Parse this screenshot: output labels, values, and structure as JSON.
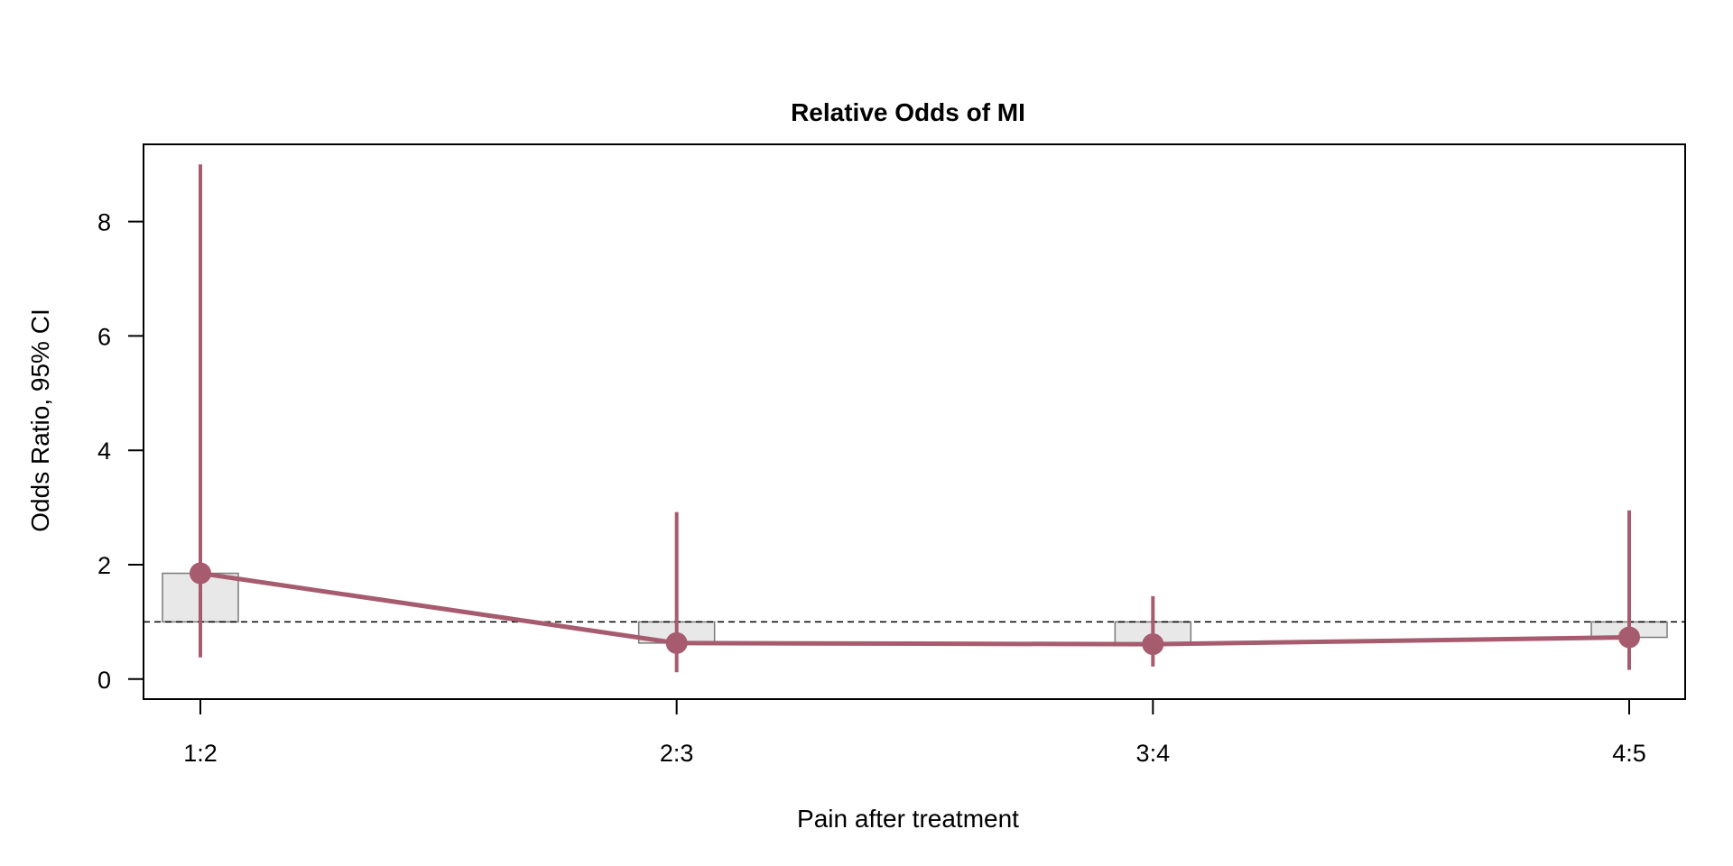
{
  "chart_data": {
    "type": "line",
    "title": "Relative Odds of MI",
    "xlabel": "Pain after treatment",
    "ylabel": "Odds Ratio, 95% CI",
    "categories": [
      "1:2",
      "2:3",
      "3:4",
      "4:5"
    ],
    "y_ticks": [
      "0",
      "2",
      "4",
      "6",
      "8"
    ],
    "ylim": [
      -0.35,
      9.35
    ],
    "reference_line": 1,
    "series": [
      {
        "values": [
          1.85,
          0.63,
          0.61,
          0.73
        ],
        "ci_lower": [
          0.38,
          0.12,
          0.22,
          0.16
        ],
        "ci_upper": [
          9.0,
          2.92,
          1.45,
          2.95
        ],
        "color": "#a65c6e"
      }
    ],
    "bar_color": "#e8e8e8",
    "bar_border_color": "#7a7a7a",
    "grid": false,
    "legend": "none"
  }
}
